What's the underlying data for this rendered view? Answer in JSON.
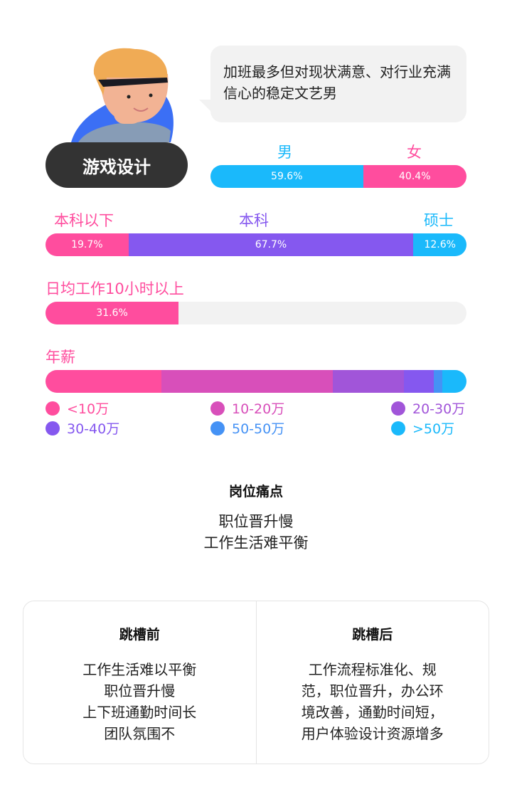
{
  "profile": {
    "role": "游戏设计",
    "quote": "加班最多但对现状满意、对行业充满信心的稳定文艺男"
  },
  "gender": {
    "labels": [
      "男",
      "女"
    ],
    "values": [
      "59.6%",
      "40.4%"
    ],
    "fractions": [
      59.6,
      40.4
    ],
    "colors": [
      "#1ab9fb",
      "#ff4d9e"
    ]
  },
  "education": {
    "labels": [
      "本科以下",
      "本科",
      "硕士"
    ],
    "values": [
      "19.7%",
      "67.7%",
      "12.6%"
    ],
    "fractions": [
      19.7,
      67.7,
      12.6
    ],
    "colors": [
      "#ff4d9e",
      "#8558ef",
      "#1ab9fb"
    ]
  },
  "overtime": {
    "label": "日均工作10小时以上",
    "value": "31.6%",
    "fraction": 31.6,
    "color": "#ff4d9e"
  },
  "salary": {
    "label": "年薪",
    "legend": [
      "<10万",
      "10-20万",
      "20-30万",
      "30-40万",
      "50-50万",
      ">50万"
    ],
    "fractions": [
      27.6,
      40.6,
      17.0,
      7.1,
      2.0,
      5.7
    ],
    "colors": [
      "#ff4d9e",
      "#d84fba",
      "#a155d9",
      "#8558ef",
      "#4592f5",
      "#1ab9fb"
    ]
  },
  "pain": {
    "title": "岗位痛点",
    "items": [
      "职位晋升慢",
      "工作生活难平衡"
    ]
  },
  "before": {
    "title": "跳槽前",
    "items": [
      "工作生活难以平衡",
      "职位晋升慢",
      "上下班通勤时间长",
      "团队氛围不"
    ]
  },
  "after": {
    "title": "跳槽后",
    "items": [
      "工作流程标准化、规",
      "范，职位晋升，办公环",
      "境改善，通勤时间短，",
      "用户体验设计资源增多"
    ]
  }
}
